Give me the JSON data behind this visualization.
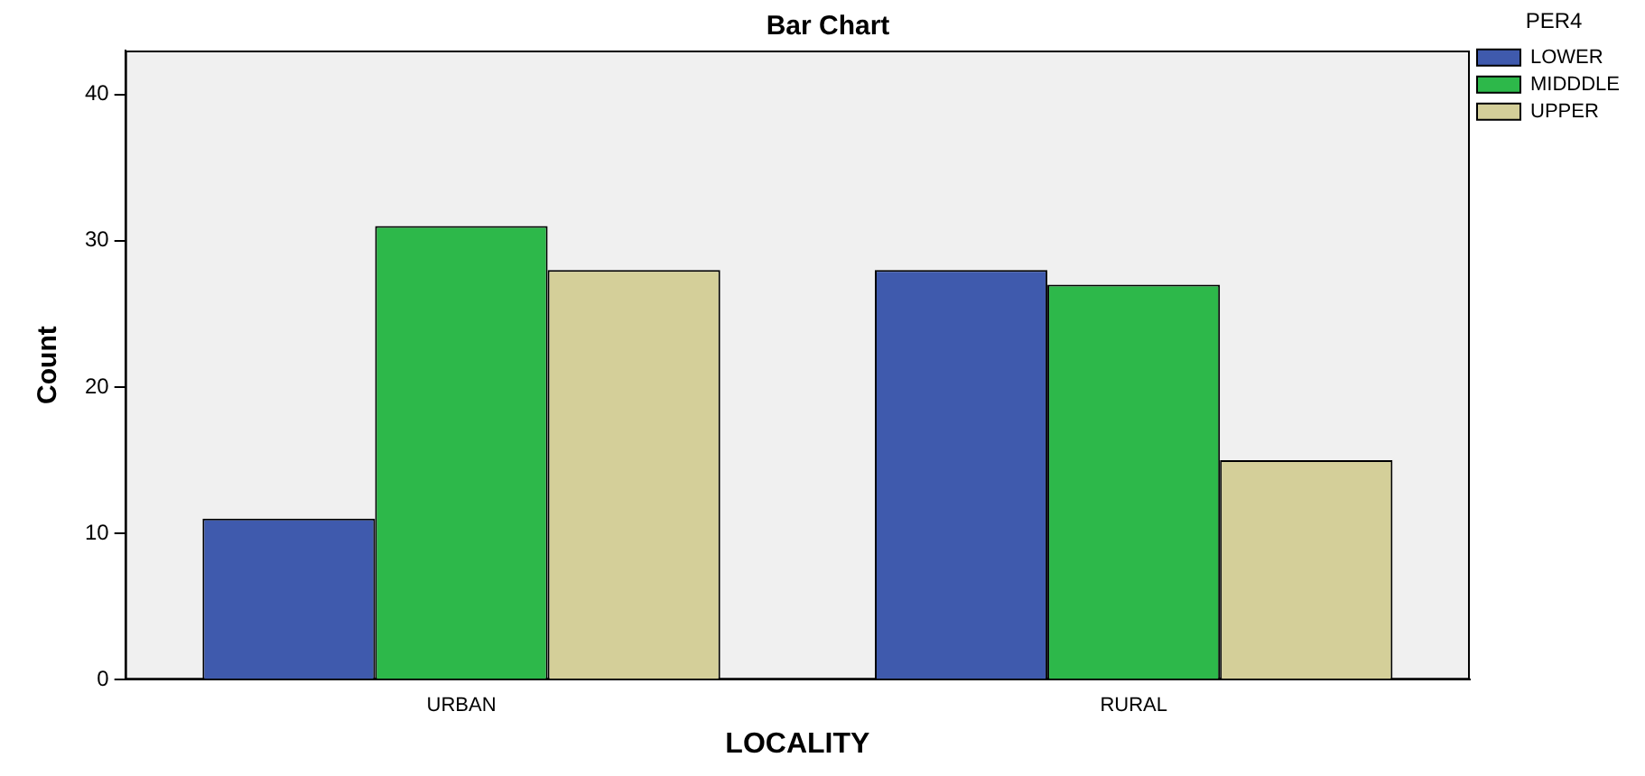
{
  "chart_data": {
    "type": "bar",
    "title": "Bar Chart",
    "xlabel": "LOCALITY",
    "ylabel": "Count",
    "legend_title": "PER4",
    "categories": [
      "URBAN",
      "RURAL"
    ],
    "series": [
      {
        "name": "LOWER",
        "color": "#3f5aad",
        "values": [
          11,
          28
        ]
      },
      {
        "name": "MIDDDLE",
        "color": "#2db84a",
        "values": [
          31,
          27
        ]
      },
      {
        "name": "UPPER",
        "color": "#d4cf99",
        "values": [
          28,
          15
        ]
      }
    ],
    "ylim": [
      0,
      43
    ],
    "yticks": [
      0,
      10,
      20,
      30,
      40
    ],
    "grid": false,
    "legend": "top right"
  }
}
